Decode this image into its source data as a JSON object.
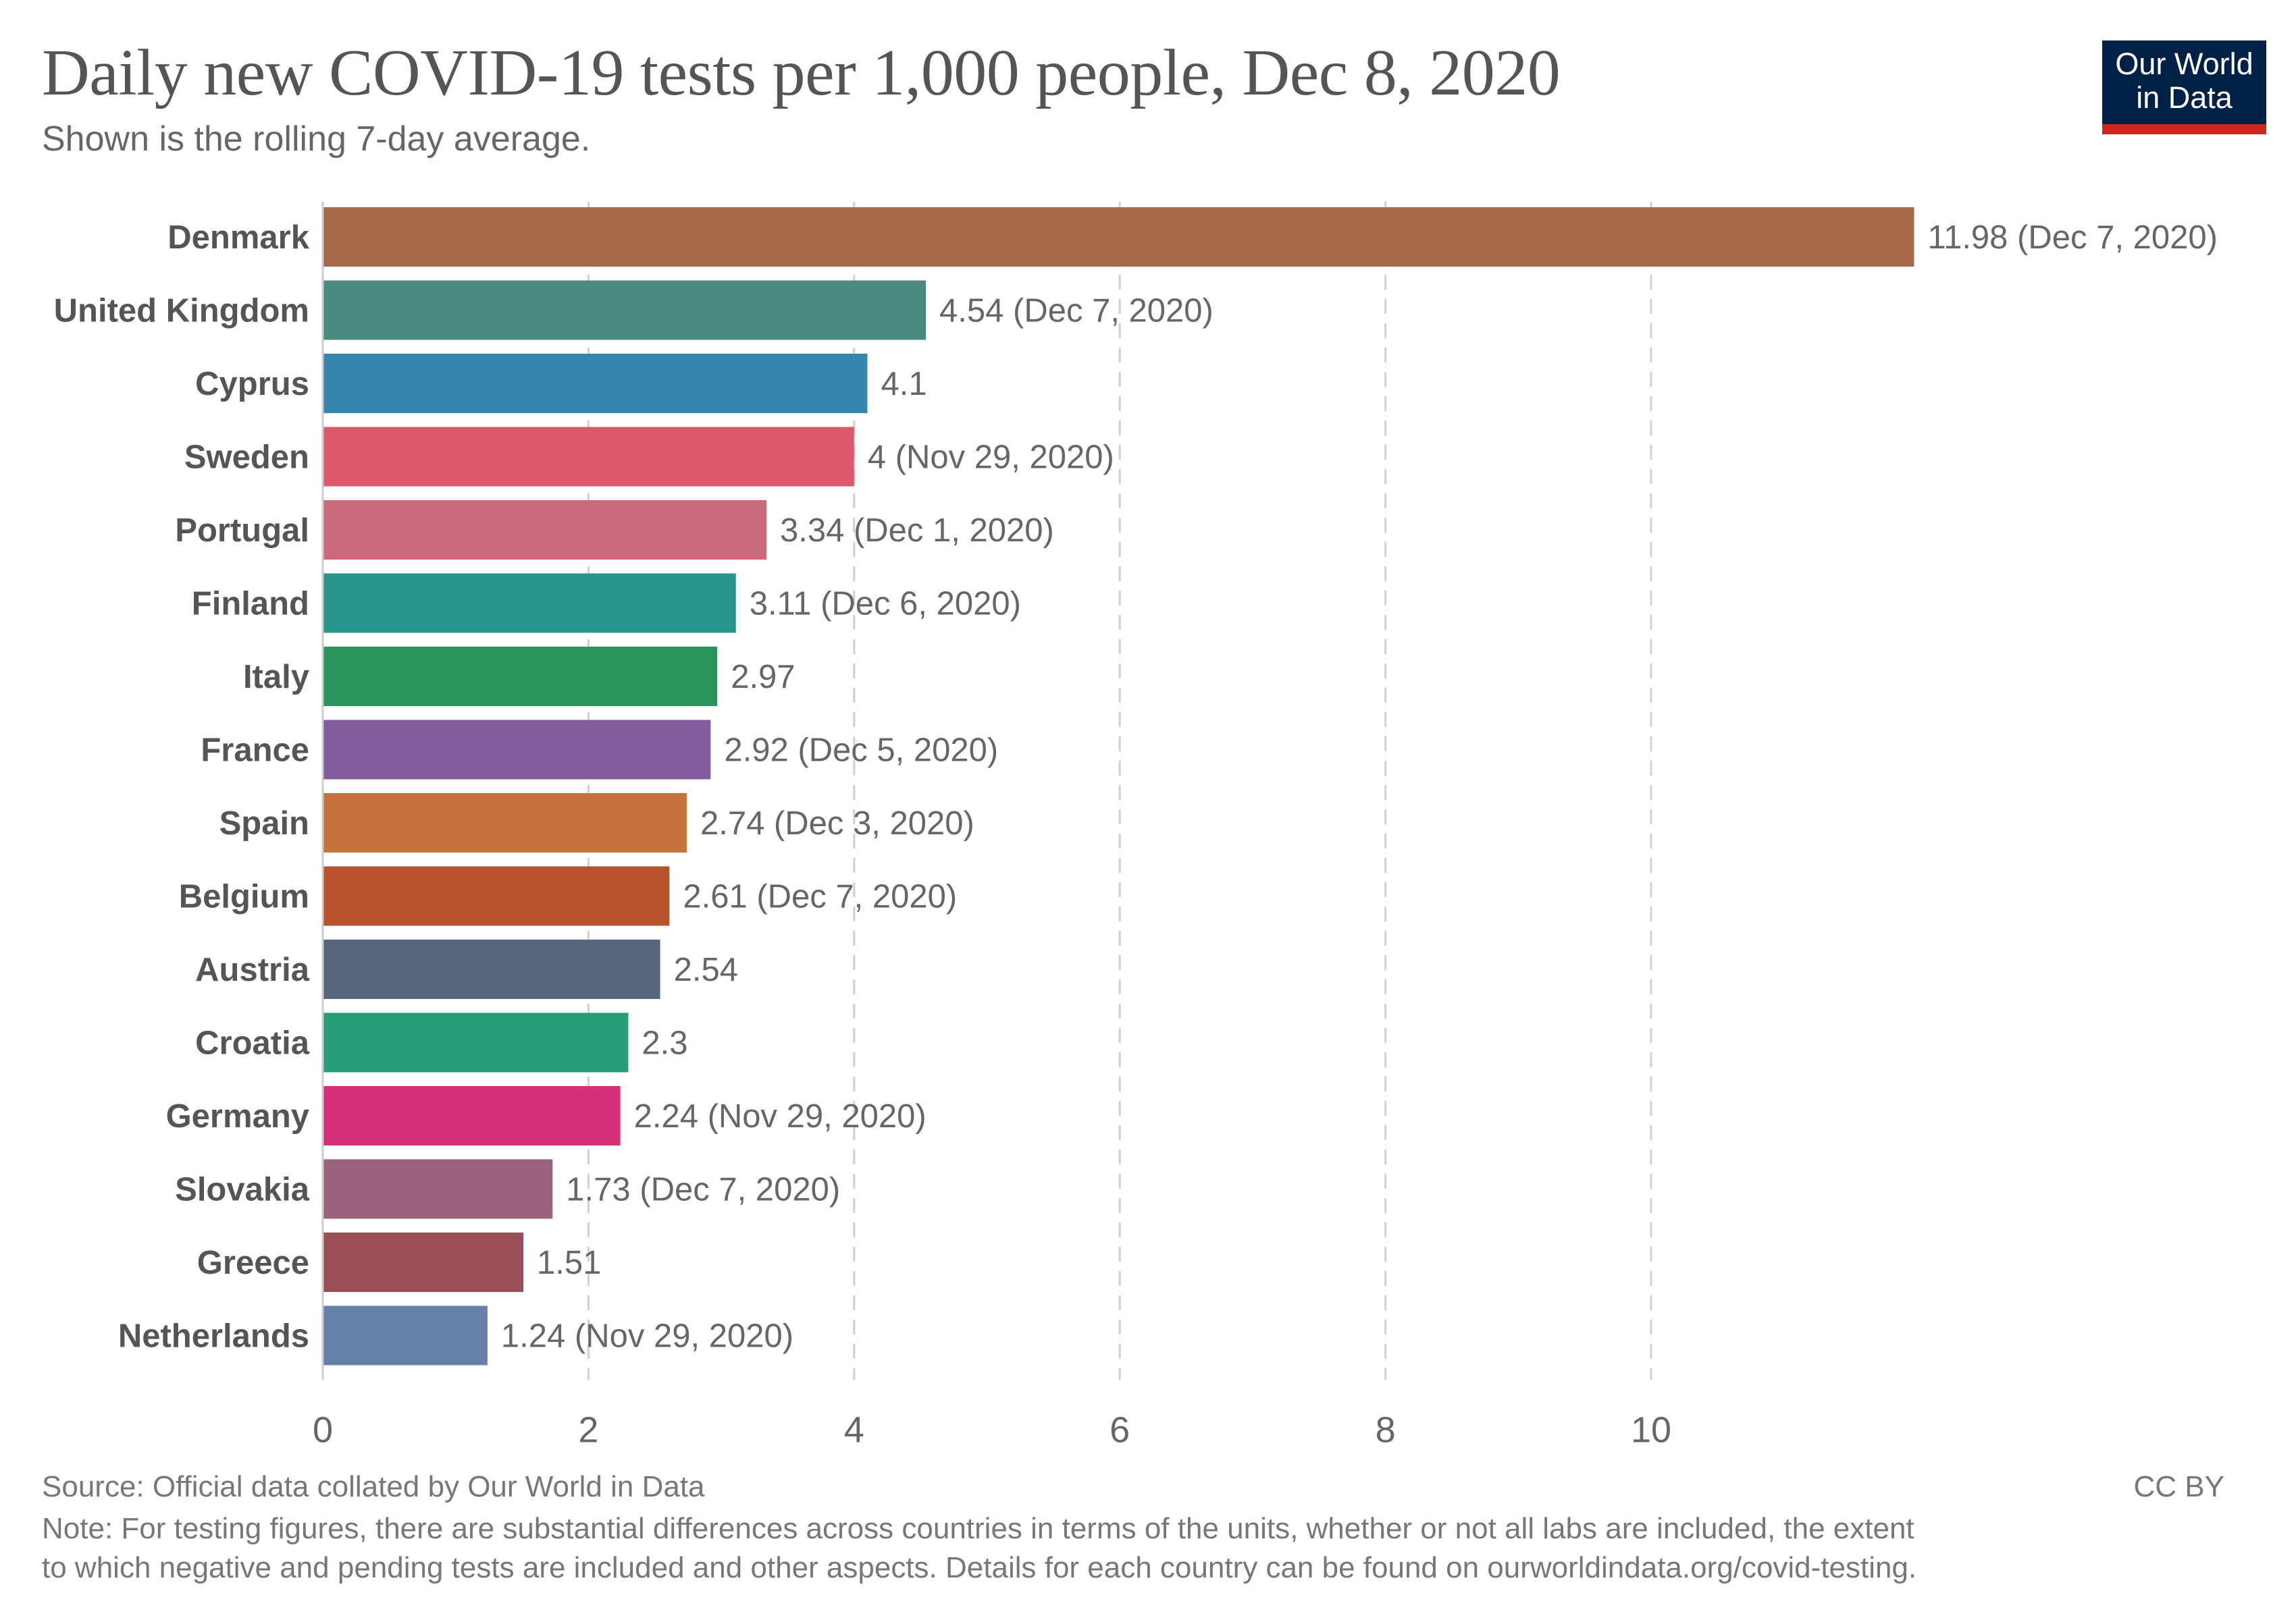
{
  "header": {
    "title": "Daily new COVID-19 tests per 1,000 people, Dec 8, 2020",
    "subtitle": "Shown is the rolling 7-day average."
  },
  "logo": {
    "line1": "Our World",
    "line2": "in Data",
    "bg_color": "#002147",
    "accent_color": "#ce261e"
  },
  "footer": {
    "source": "Source: Official data collated by Our World in Data",
    "license": "CC BY",
    "note_line1": "Note: For testing figures, there are substantial differences across countries in terms of the units, whether or not all labs are included, the extent",
    "note_line2": "to which negative and pending tests are included and other aspects. Details for each country can be found on ourworldindata.org/covid-testing."
  },
  "chart_data": {
    "type": "bar",
    "orientation": "horizontal",
    "title": "Daily new COVID-19 tests per 1,000 people, Dec 8, 2020",
    "subtitle": "Shown is the rolling 7-day average.",
    "xlabel": "",
    "ylabel": "",
    "xlim": [
      0,
      12
    ],
    "xticks": [
      0,
      2,
      4,
      6,
      8,
      10
    ],
    "grid": "vertical-dashed",
    "legend": "none",
    "bars": [
      {
        "category": "Denmark",
        "value": 11.98,
        "label": "11.98 (Dec 7, 2020)",
        "color": "#a66a4a"
      },
      {
        "category": "United Kingdom",
        "value": 4.54,
        "label": "4.54 (Dec 7, 2020)",
        "color": "#4a8a7e"
      },
      {
        "category": "Cyprus",
        "value": 4.1,
        "label": "4.1",
        "color": "#3586ad"
      },
      {
        "category": "Sweden",
        "value": 4,
        "label": "4 (Nov 29, 2020)",
        "color": "#dd586b"
      },
      {
        "category": "Portugal",
        "value": 3.34,
        "label": "3.34 (Dec 1, 2020)",
        "color": "#ca6a7b"
      },
      {
        "category": "Finland",
        "value": 3.11,
        "label": "3.11 (Dec 6, 2020)",
        "color": "#28958d"
      },
      {
        "category": "Italy",
        "value": 2.97,
        "label": "2.97",
        "color": "#2a955b"
      },
      {
        "category": "France",
        "value": 2.92,
        "label": "2.92 (Dec 5, 2020)",
        "color": "#825c9e"
      },
      {
        "category": "Spain",
        "value": 2.74,
        "label": "2.74 (Dec 3, 2020)",
        "color": "#c7723b"
      },
      {
        "category": "Belgium",
        "value": 2.61,
        "label": "2.61 (Dec 7, 2020)",
        "color": "#b9522d"
      },
      {
        "category": "Austria",
        "value": 2.54,
        "label": "2.54",
        "color": "#56667b"
      },
      {
        "category": "Croatia",
        "value": 2.3,
        "label": "2.3",
        "color": "#279c78"
      },
      {
        "category": "Germany",
        "value": 2.24,
        "label": "2.24 (Nov 29, 2020)",
        "color": "#d52f7b"
      },
      {
        "category": "Slovakia",
        "value": 1.73,
        "label": "1.73 (Dec 7, 2020)",
        "color": "#9a627b"
      },
      {
        "category": "Greece",
        "value": 1.51,
        "label": "1.51",
        "color": "#984e54"
      },
      {
        "category": "Netherlands",
        "value": 1.24,
        "label": "1.24 (Nov 29, 2020)",
        "color": "#667fa9"
      }
    ]
  }
}
